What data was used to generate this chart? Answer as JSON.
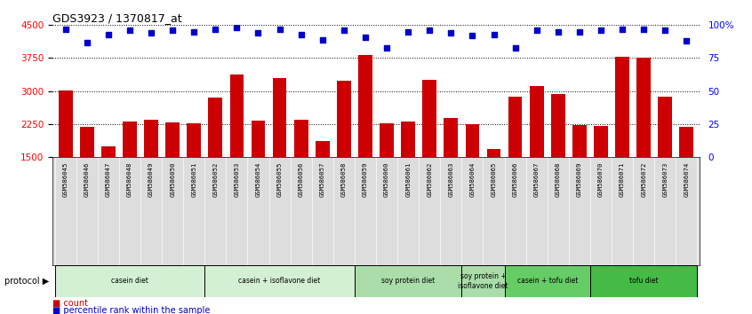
{
  "title": "GDS3923 / 1370817_at",
  "samples": [
    "GSM586045",
    "GSM586046",
    "GSM586047",
    "GSM586048",
    "GSM586049",
    "GSM586050",
    "GSM586051",
    "GSM586052",
    "GSM586053",
    "GSM586054",
    "GSM586055",
    "GSM586056",
    "GSM586057",
    "GSM586058",
    "GSM586059",
    "GSM586060",
    "GSM586061",
    "GSM586062",
    "GSM586063",
    "GSM586064",
    "GSM586065",
    "GSM586066",
    "GSM586067",
    "GSM586068",
    "GSM586069",
    "GSM586070",
    "GSM586071",
    "GSM586072",
    "GSM586073",
    "GSM586074"
  ],
  "bar_values": [
    3020,
    2180,
    1740,
    2310,
    2340,
    2290,
    2270,
    2860,
    3380,
    2330,
    3290,
    2340,
    1870,
    3230,
    3820,
    2270,
    2310,
    3260,
    2380,
    2240,
    1680,
    2870,
    3110,
    2930,
    2230,
    2200,
    3780,
    3760,
    2870,
    2190
  ],
  "percentile_values": [
    97,
    87,
    93,
    96,
    94,
    96,
    95,
    97,
    98,
    94,
    97,
    93,
    89,
    96,
    91,
    83,
    95,
    96,
    94,
    92,
    93,
    83,
    96,
    95,
    95,
    96,
    97,
    97,
    96,
    88
  ],
  "bar_color": "#cc0000",
  "dot_color": "#0000cc",
  "ylim_left": [
    1500,
    4500
  ],
  "ylim_right": [
    0,
    100
  ],
  "yticks_left": [
    1500,
    2250,
    3000,
    3750,
    4500
  ],
  "yticks_right": [
    0,
    25,
    50,
    75,
    100
  ],
  "ylabel_right_labels": [
    "0",
    "25",
    "50",
    "75",
    "100%"
  ],
  "groups": [
    {
      "label": "casein diet",
      "start": 0,
      "end": 6,
      "color": "#d4f0d4"
    },
    {
      "label": "casein + isoflavone diet",
      "start": 7,
      "end": 13,
      "color": "#d4f0d4"
    },
    {
      "label": "soy protein diet",
      "start": 14,
      "end": 18,
      "color": "#aaddaa"
    },
    {
      "label": "soy protein +\nisoflavone diet",
      "start": 19,
      "end": 20,
      "color": "#aaddaa"
    },
    {
      "label": "casein + tofu diet",
      "start": 21,
      "end": 24,
      "color": "#66cc66"
    },
    {
      "label": "tofu diet",
      "start": 25,
      "end": 29,
      "color": "#44bb44"
    }
  ]
}
